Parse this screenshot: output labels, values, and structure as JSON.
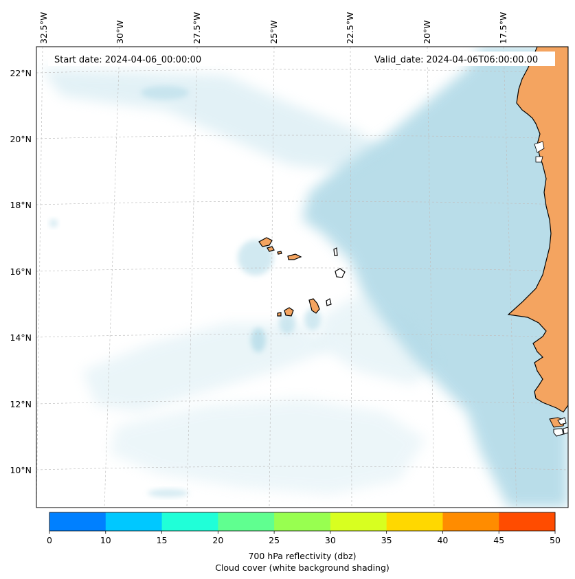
{
  "map": {
    "start_label": "Start date: 2024-04-06_00:00:00",
    "valid_label": "Valid_date: 2024-04-06T06:00:00.00",
    "lon_labels": [
      "32.5°W",
      "30°W",
      "27.5°W",
      "25°W",
      "22.5°W",
      "20°W",
      "17.5°W"
    ],
    "lat_labels": [
      "22°N",
      "20°N",
      "18°N",
      "16°N",
      "14°N",
      "12°N",
      "10°N"
    ],
    "colors": {
      "land": "#f4a460",
      "cloud": "#add8e6",
      "grid": "#c0c0c0"
    }
  },
  "colorbar": {
    "ticks": [
      "0",
      "10",
      "15",
      "20",
      "25",
      "30",
      "35",
      "40",
      "45",
      "50"
    ],
    "colors": [
      "#0080ff",
      "#00c8ff",
      "#20ffd8",
      "#60ff90",
      "#98ff50",
      "#d8ff20",
      "#ffd800",
      "#ff8c00",
      "#ff4c00"
    ],
    "label_line1": "700 hPa reflectivity (dbz)",
    "label_line2": "Cloud cover (white background shading)"
  }
}
